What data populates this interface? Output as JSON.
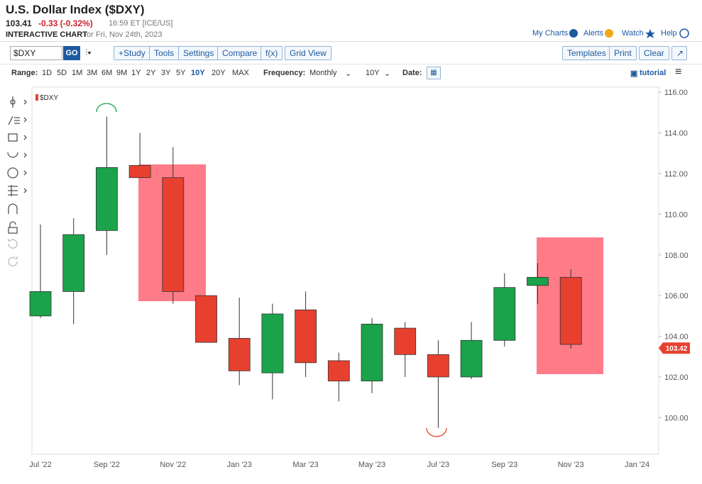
{
  "header": {
    "title": "U.S. Dollar Index ($DXY)",
    "price": "103.41",
    "change": "-0.33 (-0.32%)",
    "time": "16:59 ET [ICE/US]",
    "chart_label": "INTERACTIVE CHART",
    "chart_date": "for Fri, Nov 24th, 2023",
    "links": [
      "My Charts",
      "Alerts",
      "Watch",
      "Help"
    ]
  },
  "toolbar": {
    "symbol": "$DXY",
    "go": "GO",
    "buttons": [
      "+Study",
      "Tools",
      "Settings",
      "Compare",
      "f(x)",
      "Grid View"
    ],
    "right_buttons": [
      "Templates",
      "Print",
      "Clear"
    ]
  },
  "range_bar": {
    "range_label": "Range:",
    "ranges": [
      "1D",
      "5D",
      "1M",
      "3M",
      "6M",
      "9M",
      "1Y",
      "2Y",
      "3Y",
      "5Y",
      "10Y",
      "20Y",
      "MAX"
    ],
    "active_range": "10Y",
    "frequency_label": "Frequency:",
    "frequency": "Monthly",
    "period": "10Y",
    "date_label": "Date:",
    "tutorial": "tutorial"
  },
  "chart_data": {
    "type": "candlestick",
    "categories": [
      "Jul '22",
      null,
      "Sep '22",
      null,
      "Nov '22",
      null,
      "Jan '23",
      null,
      "Mar '23",
      null,
      "May '23",
      null,
      "Jul '23",
      null,
      "Sep '23",
      null,
      "Nov '23",
      null,
      "Jan '24"
    ],
    "series": [
      {
        "name": "$DXY",
        "color": "#e8402f",
        "up_color": "#1aa34a",
        "down_color": "#e8402f",
        "open": [
          105.0,
          106.2,
          109.2,
          112.4,
          111.8,
          106.0,
          103.9,
          102.2,
          105.3,
          102.8,
          101.8,
          104.4,
          103.1,
          102.0,
          103.8,
          106.5,
          106.9,
          null,
          null
        ],
        "high": [
          109.5,
          109.8,
          114.8,
          114.0,
          113.3,
          106.0,
          105.9,
          105.6,
          106.2,
          103.2,
          104.9,
          104.7,
          103.8,
          104.7,
          107.1,
          107.6,
          107.3,
          null,
          null
        ],
        "low": [
          104.9,
          104.6,
          108.0,
          111.8,
          105.6,
          103.7,
          101.6,
          100.9,
          102.0,
          100.8,
          101.2,
          102.0,
          99.5,
          101.9,
          103.5,
          105.6,
          103.4,
          null,
          null
        ],
        "close": [
          106.2,
          109.0,
          112.3,
          111.8,
          106.2,
          103.7,
          102.3,
          105.1,
          102.7,
          101.8,
          104.6,
          103.1,
          102.0,
          103.8,
          106.4,
          106.9,
          103.6,
          null,
          null
        ]
      }
    ],
    "last_price": 103.42,
    "last_price_color": "#e8402f",
    "ylim": [
      98.2,
      116.25
    ],
    "yticks": [
      {
        "value": 100,
        "label": "100.00"
      },
      {
        "value": 102,
        "label": "102.00"
      },
      {
        "value": 104,
        "label": "104.00"
      },
      {
        "value": 106,
        "label": "106.00"
      },
      {
        "value": 108,
        "label": "108.00"
      },
      {
        "value": 110,
        "label": "110.00"
      },
      {
        "value": 112,
        "label": "112.00"
      },
      {
        "value": 114,
        "label": "114.00"
      },
      {
        "value": 116,
        "label": "116.00"
      }
    ],
    "grid": false
  }
}
